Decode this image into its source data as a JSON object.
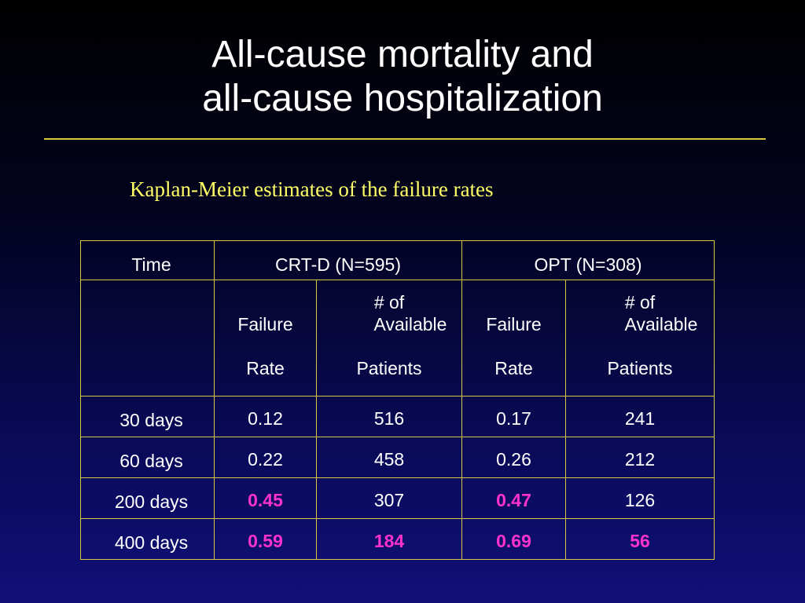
{
  "slide": {
    "title_line1": "All-cause mortality and",
    "title_line2": "all-cause hospitalization",
    "subtitle": "Kaplan-Meier estimates of the failure rates"
  },
  "table": {
    "header": {
      "time": "Time",
      "crtd": "CRT-D (N=595)",
      "opt": "OPT (N=308)"
    },
    "subheader": {
      "failure": "Failure",
      "rate": "Rate",
      "num_of": "# of",
      "available": "Available",
      "patients": "Patients"
    },
    "rows": [
      {
        "time": "30 days",
        "crtd_rate": "0.12",
        "crtd_avail": "516",
        "opt_rate": "0.17",
        "opt_avail": "241"
      },
      {
        "time": "60 days",
        "crtd_rate": "0.22",
        "crtd_avail": "458",
        "opt_rate": "0.26",
        "opt_avail": "212"
      },
      {
        "time": "200 days",
        "crtd_rate": "0.45",
        "crtd_avail": "307",
        "opt_rate": "0.47",
        "opt_avail": "126"
      },
      {
        "time": "400 days",
        "crtd_rate": "0.59",
        "crtd_avail": "184",
        "opt_rate": "0.69",
        "opt_avail": "56"
      }
    ]
  },
  "colors": {
    "title": "#ffffff",
    "subtitle": "#ffff66",
    "rule": "#d8c840",
    "highlight": "#ff33cc"
  }
}
